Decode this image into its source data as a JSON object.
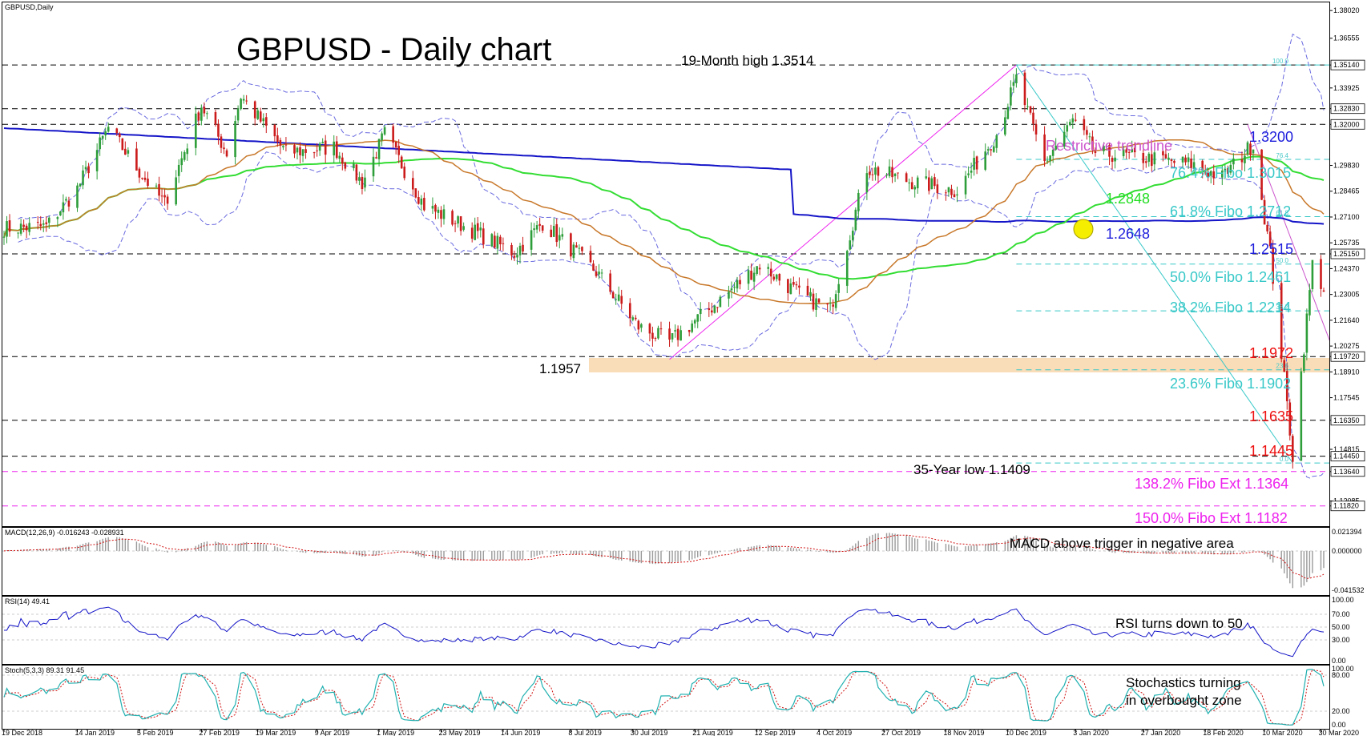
{
  "window_title": "GBPUSD,Daily",
  "main_title": "GBPUSD - Daily chart",
  "colors": {
    "bull": "#2e9e3a",
    "bear": "#cc1b1b",
    "sma200": "#1414c8",
    "sma100": "#33dd33",
    "sma50": "#c8782a",
    "boll": "#6a6ae0",
    "fib": "#38c8c8",
    "magenta": "#ee22ee",
    "trend": "#cc55cc",
    "red_label": "#ee1111",
    "green_label": "#22dd22",
    "blue_label": "#1c1cdc",
    "zone": "#f9dcb8",
    "highlight": "#f5ee00"
  },
  "x_axis_labels": [
    "19 Dec 2018",
    "14 Jan 2019",
    "5 Feb 2019",
    "27 Feb 2019",
    "19 Mar 2019",
    "9 Apr 2019",
    "1 May 2019",
    "23 May 2019",
    "14 Jun 2019",
    "8 Jul 2019",
    "30 Jul 2019",
    "21 Aug 2019",
    "12 Sep 2019",
    "4 Oct 2019",
    "27 Oct 2019",
    "18 Nov 2019",
    "10 Dec 2019",
    "3 Jan 2020",
    "27 Jan 2020",
    "18 Feb 2020",
    "10 Mar 2020",
    "30 Mar 2020"
  ],
  "price_axis_labels": [
    "1.38020",
    "1.36555",
    "1.35140",
    "1.33925",
    "1.32830",
    "1.32000",
    "1.29830",
    "1.28465",
    "1.27100",
    "1.25735",
    "1.25150",
    "1.24370",
    "1.23005",
    "1.21640",
    "1.20275",
    "1.19720",
    "1.18910",
    "1.17545",
    "1.16350",
    "1.14815",
    "1.14450",
    "1.13640",
    "1.12085",
    "1.11820"
  ],
  "price_axis_boxed": [
    "1.35140",
    "1.32830",
    "1.32000",
    "1.25150",
    "1.19720",
    "1.16350",
    "1.14450",
    "1.13640",
    "1.11820"
  ],
  "annotations": {
    "high": "19-Month high 1.3514",
    "low_35y": "35-Year low 1.1409",
    "low_1957": "1.1957",
    "restrictive": "Restrictive trendline",
    "r1": "1.3200",
    "fib764": "76.4% Fibo 1.3015",
    "sma100_val": "1.2848",
    "fib618": "61.8% Fibo 1.2712",
    "sma200_val": "1.2648",
    "r2": "1.2515",
    "fib50": "50.0% Fibo 1.2461",
    "fib382": "38.2% Fibo 1.2214",
    "s1": "1.1972",
    "fib236": "23.6% Fibo 1.1902",
    "s2": "1.1635",
    "s3": "1.1445",
    "ext1382": "138.2% Fibo Ext 1.1364",
    "ext150": "150.0% Fibo Ext 1.1182"
  },
  "fib_tags": [
    "100.0",
    "76.4",
    "61.8",
    "50.0",
    "38.2",
    "23.6",
    "0.0"
  ],
  "macd": {
    "title": "MACD(12,26,9) -0.016243 -0.028931",
    "note": "MACD above trigger in negative area",
    "axis": [
      "0.021394",
      "0.000000",
      "-0.041532"
    ]
  },
  "rsi": {
    "title": "RSI(14) 49.41",
    "note": "RSI turns down to 50",
    "axis": [
      "100.00",
      "70.00",
      "50.00",
      "30.00",
      "0.00"
    ]
  },
  "stoch": {
    "title": "Stoch(5,3,3) 89.31 91.45",
    "note_line1": "Stochastics turning",
    "note_line2": "in overbought zone",
    "axis": [
      "100.00",
      "80.00",
      "20.00",
      "0.00"
    ]
  },
  "chart_data": {
    "type": "candlestick",
    "symbol": "GBPUSD",
    "timeframe": "Daily",
    "title": "GBPUSD - Daily chart",
    "x_range": [
      "19 Dec 2018",
      "31 Mar 2020"
    ],
    "ylim": [
      1.1075,
      1.3845
    ],
    "close_path": [
      [
        "2018-12-19",
        1.265
      ],
      [
        "2019-01-03",
        1.266
      ],
      [
        "2019-01-14",
        1.286
      ],
      [
        "2019-01-25",
        1.318
      ],
      [
        "2019-02-05",
        1.295
      ],
      [
        "2019-02-14",
        1.278
      ],
      [
        "2019-02-27",
        1.33
      ],
      [
        "2019-03-08",
        1.305
      ],
      [
        "2019-03-13",
        1.335
      ],
      [
        "2019-03-29",
        1.305
      ],
      [
        "2019-04-15",
        1.308
      ],
      [
        "2019-04-25",
        1.289
      ],
      [
        "2019-05-03",
        1.315
      ],
      [
        "2019-05-17",
        1.277
      ],
      [
        "2019-06-03",
        1.264
      ],
      [
        "2019-06-18",
        1.252
      ],
      [
        "2019-06-28",
        1.268
      ],
      [
        "2019-07-17",
        1.242
      ],
      [
        "2019-08-01",
        1.213
      ],
      [
        "2019-08-12",
        1.205
      ],
      [
        "2019-08-26",
        1.222
      ],
      [
        "2019-09-13",
        1.246
      ],
      [
        "2019-09-27",
        1.23
      ],
      [
        "2019-10-08",
        1.222
      ],
      [
        "2019-10-21",
        1.297
      ],
      [
        "2019-11-05",
        1.29
      ],
      [
        "2019-11-22",
        1.285
      ],
      [
        "2019-12-06",
        1.315
      ],
      [
        "2019-12-13",
        1.344
      ],
      [
        "2019-12-23",
        1.3
      ],
      [
        "2020-01-02",
        1.322
      ],
      [
        "2020-01-10",
        1.305
      ],
      [
        "2020-01-28",
        1.302
      ],
      [
        "2020-02-13",
        1.299
      ],
      [
        "2020-02-24",
        1.292
      ],
      [
        "2020-03-06",
        1.31
      ],
      [
        "2020-03-12",
        1.252
      ],
      [
        "2020-03-20",
        1.145
      ],
      [
        "2020-03-27",
        1.246
      ],
      [
        "2020-03-31",
        1.233
      ]
    ],
    "key_levels": {
      "resistance": [
        1.3514,
        1.32,
        1.2515
      ],
      "support": [
        1.1972,
        1.1635,
        1.1445,
        1.1957,
        1.1409
      ],
      "fibonacci": {
        "100.0": 1.3514,
        "76.4": 1.3015,
        "61.8": 1.2712,
        "50.0": 1.2461,
        "38.2": 1.2214,
        "23.6": 1.1902,
        "0.0": 1.1409
      },
      "fibo_extensions": {
        "138.2": 1.1364,
        "150.0": 1.1182
      },
      "sma100": 1.2848,
      "sma200": 1.2648
    },
    "indicators": {
      "macd": {
        "params": "12,26,9",
        "value": -0.016243,
        "signal": -0.028931,
        "ylim": [
          -0.041532,
          0.021394
        ]
      },
      "rsi": {
        "params": "14",
        "value": 49.41,
        "ylim": [
          0,
          100
        ]
      },
      "stochastic": {
        "params": "5,3,3",
        "k": 89.31,
        "d": 91.45,
        "ylim": [
          0,
          100
        ]
      }
    },
    "grid": false,
    "legend": "none"
  }
}
